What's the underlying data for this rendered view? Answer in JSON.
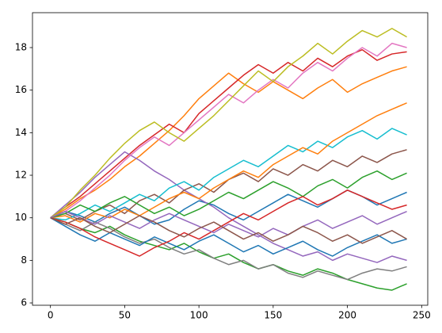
{
  "chart_data": {
    "type": "line",
    "x": [
      0,
      10,
      20,
      30,
      40,
      50,
      60,
      70,
      80,
      90,
      100,
      110,
      120,
      130,
      140,
      150,
      160,
      170,
      180,
      190,
      200,
      210,
      220,
      230,
      240
    ],
    "series": [
      {
        "color": "#1f77b4",
        "values": [
          10,
          10.3,
          10.1,
          9.8,
          10.2,
          10.5,
          10.1,
          9.7,
          9.9,
          10.4,
          10.8,
          10.6,
          10.2,
          9.9,
          10.3,
          10.7,
          11.1,
          10.8,
          10.5,
          10.9,
          11.3,
          11.0,
          10.6,
          10.9,
          11.2
        ]
      },
      {
        "color": "#ff7f0e",
        "values": [
          10,
          10.4,
          10.9,
          11.3,
          11.8,
          12.4,
          12.9,
          13.5,
          14.1,
          14.8,
          15.6,
          16.2,
          16.8,
          16.3,
          15.9,
          16.4,
          16.0,
          15.6,
          16.1,
          16.5,
          15.9,
          16.3,
          16.6,
          16.9,
          17.1
        ]
      },
      {
        "color": "#2ca02c",
        "values": [
          10,
          9.8,
          9.5,
          9.3,
          9.6,
          9.2,
          8.9,
          8.7,
          8.5,
          8.8,
          8.4,
          8.1,
          8.3,
          7.9,
          7.6,
          7.8,
          7.5,
          7.3,
          7.6,
          7.4,
          7.1,
          6.9,
          6.7,
          6.6,
          6.9
        ]
      },
      {
        "color": "#d62728",
        "values": [
          10,
          10.5,
          11.0,
          11.6,
          12.2,
          12.8,
          13.4,
          13.9,
          14.4,
          14.0,
          14.9,
          15.5,
          16.1,
          16.7,
          17.2,
          16.8,
          17.3,
          16.9,
          17.5,
          17.1,
          17.6,
          17.9,
          17.4,
          17.7,
          17.8
        ]
      },
      {
        "color": "#9467bd",
        "values": [
          10,
          10.6,
          11.2,
          11.9,
          12.5,
          13.1,
          12.7,
          12.2,
          11.8,
          11.3,
          10.9,
          10.5,
          10.0,
          9.6,
          9.2,
          8.8,
          8.5,
          8.2,
          8.4,
          8.0,
          8.3,
          8.1,
          7.9,
          8.2,
          8.0
        ]
      },
      {
        "color": "#8c564b",
        "values": [
          10,
          10.2,
          9.9,
          10.3,
          10.6,
          10.2,
          10.8,
          11.1,
          10.7,
          11.3,
          11.6,
          11.2,
          11.8,
          12.1,
          11.7,
          12.3,
          12.0,
          12.5,
          12.2,
          12.7,
          12.4,
          12.9,
          12.6,
          13.0,
          13.2
        ]
      },
      {
        "color": "#e377c2",
        "values": [
          10,
          10.3,
          10.8,
          11.4,
          12.0,
          12.7,
          13.3,
          13.8,
          13.4,
          14.0,
          14.6,
          15.2,
          15.8,
          15.4,
          16.0,
          16.5,
          16.1,
          16.8,
          17.3,
          16.9,
          17.5,
          18.0,
          17.6,
          18.2,
          18.0
        ]
      },
      {
        "color": "#7f7f7f",
        "values": [
          10,
          9.7,
          9.4,
          9.8,
          9.5,
          9.1,
          8.8,
          9.0,
          8.6,
          8.3,
          8.5,
          8.1,
          7.8,
          8.0,
          7.6,
          7.8,
          7.4,
          7.2,
          7.5,
          7.3,
          7.1,
          7.4,
          7.6,
          7.5,
          7.7
        ]
      },
      {
        "color": "#bcbd22",
        "values": [
          10,
          10.5,
          11.3,
          12.0,
          12.8,
          13.5,
          14.1,
          14.5,
          14.0,
          13.6,
          14.2,
          14.8,
          15.5,
          16.2,
          16.9,
          16.4,
          17.1,
          17.6,
          18.2,
          17.7,
          18.3,
          18.8,
          18.5,
          18.9,
          18.5
        ]
      },
      {
        "color": "#17becf",
        "values": [
          10,
          9.9,
          10.2,
          10.6,
          10.3,
          10.7,
          11.1,
          10.8,
          11.4,
          11.7,
          11.3,
          11.9,
          12.3,
          12.7,
          12.4,
          12.9,
          13.4,
          13.1,
          13.6,
          13.3,
          13.8,
          14.1,
          13.7,
          14.2,
          13.9
        ]
      },
      {
        "color": "#1f77b4",
        "values": [
          10,
          9.6,
          9.2,
          8.9,
          9.3,
          9.0,
          8.7,
          9.1,
          8.8,
          8.5,
          8.9,
          9.2,
          8.8,
          8.4,
          8.7,
          8.3,
          8.6,
          8.9,
          8.5,
          8.2,
          8.6,
          8.9,
          9.2,
          8.8,
          9.0
        ]
      },
      {
        "color": "#ff7f0e",
        "values": [
          10,
          10.1,
          9.8,
          10.2,
          10.0,
          10.4,
          10.1,
          10.5,
          10.9,
          11.2,
          10.9,
          11.4,
          11.8,
          12.2,
          11.9,
          12.5,
          12.9,
          13.3,
          13.0,
          13.6,
          14.0,
          14.4,
          14.8,
          15.1,
          15.4
        ]
      },
      {
        "color": "#2ca02c",
        "values": [
          10,
          10.2,
          10.6,
          10.3,
          10.7,
          11.0,
          10.6,
          10.2,
          10.5,
          10.1,
          10.4,
          10.8,
          11.2,
          10.9,
          11.3,
          11.7,
          11.4,
          11.0,
          11.5,
          11.8,
          11.4,
          11.9,
          12.2,
          11.8,
          12.1
        ]
      },
      {
        "color": "#d62728",
        "values": [
          10,
          9.8,
          9.5,
          9.1,
          8.8,
          8.5,
          8.2,
          8.6,
          8.9,
          9.3,
          9.0,
          9.4,
          9.8,
          10.2,
          9.9,
          10.3,
          10.7,
          11.0,
          10.6,
          10.9,
          11.3,
          11.0,
          10.7,
          10.4,
          10.6
        ]
      },
      {
        "color": "#9467bd",
        "values": [
          10,
          10.3,
          10.0,
          9.7,
          10.1,
          9.8,
          9.5,
          9.9,
          10.2,
          9.9,
          9.6,
          9.3,
          9.7,
          9.4,
          9.1,
          9.5,
          9.2,
          9.6,
          9.9,
          9.5,
          9.8,
          10.1,
          9.7,
          10.0,
          10.3
        ]
      },
      {
        "color": "#8c564b",
        "values": [
          10,
          9.7,
          10.0,
          9.6,
          9.3,
          9.7,
          10.1,
          9.8,
          9.4,
          9.1,
          9.5,
          9.8,
          9.4,
          9.0,
          9.3,
          8.9,
          9.2,
          9.6,
          9.3,
          8.9,
          9.2,
          8.8,
          9.1,
          9.4,
          9.0
        ]
      }
    ],
    "xlim": [
      -12.1,
      254.1
    ],
    "xticks": [
      0,
      50,
      100,
      150,
      200,
      250
    ],
    "ylim": [
      5.89,
      19.64
    ],
    "yticks": [
      6,
      8,
      10,
      12,
      14,
      16,
      18
    ],
    "grid": false
  }
}
